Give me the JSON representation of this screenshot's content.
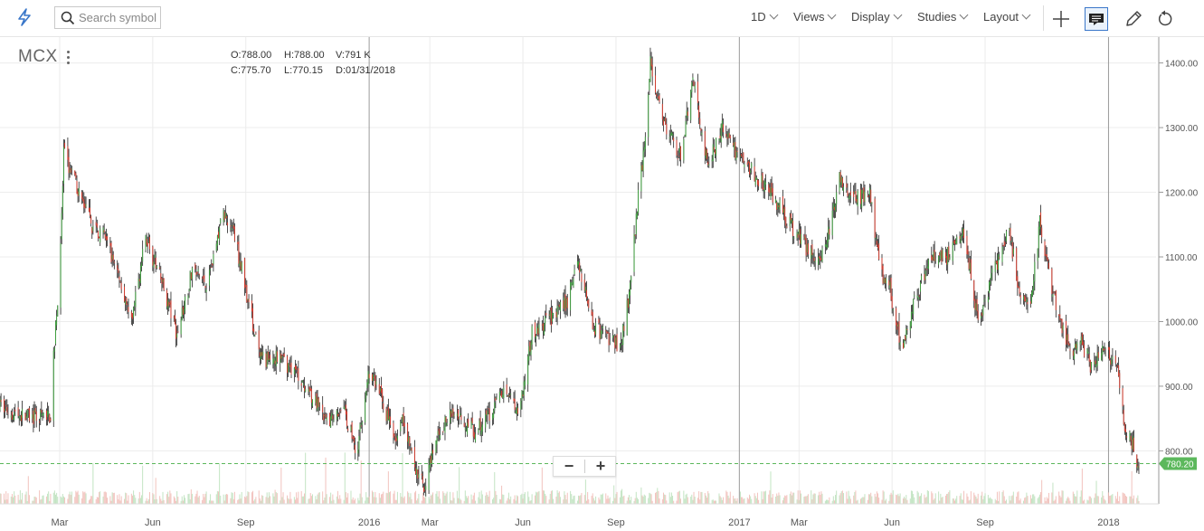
{
  "toolbar": {
    "search_placeholder": "Search symbol",
    "interval": "1D",
    "views": "Views",
    "display": "Display",
    "studies": "Studies",
    "layout": "Layout"
  },
  "header": {
    "symbol": "MCX",
    "open_label": "O:",
    "open": "788.00",
    "high_label": "H:",
    "high": "788.00",
    "volume_label": "V:",
    "volume": "791 K",
    "close_label": "C:",
    "close": "775.70",
    "low_label": "L:",
    "low": "770.15",
    "date_label": "D:",
    "date": "01/31/2018"
  },
  "colors": {
    "up": "#3f9e3f",
    "down": "#d23c2f",
    "last_price": "#5cb85c",
    "grid": "#ececec",
    "year_line": "#9a9a9a"
  },
  "chart_data": {
    "type": "candlestick",
    "symbol": "MCX",
    "interval": "1D",
    "last_price": 780.2,
    "last_price_label": "780.20",
    "yticks": [
      800,
      900,
      1000,
      1100,
      1200,
      1300,
      1400
    ],
    "ytick_labels": [
      "800.00",
      "900.00",
      "1000.00",
      "1100.00",
      "1200.00",
      "1300.00",
      "1400.00"
    ],
    "ylim": [
      718,
      1440
    ],
    "xlim": [
      "2015-01-01",
      "2018-02-17"
    ],
    "xticks": [
      {
        "date": "2015-03-01",
        "label": "Mar"
      },
      {
        "date": "2015-06-01",
        "label": "Jun"
      },
      {
        "date": "2015-09-01",
        "label": "Sep"
      },
      {
        "date": "2016-01-01",
        "label": "2016"
      },
      {
        "date": "2016-03-01",
        "label": "Mar"
      },
      {
        "date": "2016-06-01",
        "label": "Jun"
      },
      {
        "date": "2016-09-01",
        "label": "Sep"
      },
      {
        "date": "2017-01-01",
        "label": "2017"
      },
      {
        "date": "2017-03-01",
        "label": "Mar"
      },
      {
        "date": "2017-06-01",
        "label": "Jun"
      },
      {
        "date": "2017-09-01",
        "label": "Sep"
      },
      {
        "date": "2018-01-01",
        "label": "2018"
      }
    ],
    "approx_close_path": [
      [
        "2015-01-01",
        870
      ],
      [
        "2015-01-15",
        858
      ],
      [
        "2015-02-05",
        850
      ],
      [
        "2015-02-20",
        855
      ],
      [
        "2015-02-25",
        1000
      ],
      [
        "2015-03-01",
        1060
      ],
      [
        "2015-03-05",
        1260
      ],
      [
        "2015-03-15",
        1220
      ],
      [
        "2015-04-01",
        1150
      ],
      [
        "2015-04-15",
        1130
      ],
      [
        "2015-05-01",
        1060
      ],
      [
        "2015-05-10",
        990
      ],
      [
        "2015-05-25",
        1130
      ],
      [
        "2015-06-10",
        1060
      ],
      [
        "2015-06-25",
        980
      ],
      [
        "2015-07-10",
        1080
      ],
      [
        "2015-07-25",
        1060
      ],
      [
        "2015-08-10",
        1170
      ],
      [
        "2015-08-20",
        1140
      ],
      [
        "2015-08-28",
        1080
      ],
      [
        "2015-09-05",
        1020
      ],
      [
        "2015-09-15",
        940
      ],
      [
        "2015-10-01",
        945
      ],
      [
        "2015-10-15",
        930
      ],
      [
        "2015-11-01",
        900
      ],
      [
        "2015-11-20",
        840
      ],
      [
        "2015-12-05",
        870
      ],
      [
        "2015-12-20",
        800
      ],
      [
        "2015-12-31",
        920
      ],
      [
        "2016-01-10",
        900
      ],
      [
        "2016-01-25",
        820
      ],
      [
        "2016-02-05",
        850
      ],
      [
        "2016-02-15",
        770
      ],
      [
        "2016-02-25",
        745
      ],
      [
        "2016-03-10",
        830
      ],
      [
        "2016-03-25",
        860
      ],
      [
        "2016-04-15",
        830
      ],
      [
        "2016-05-01",
        860
      ],
      [
        "2016-05-15",
        900
      ],
      [
        "2016-05-28",
        860
      ],
      [
        "2016-06-10",
        980
      ],
      [
        "2016-06-25",
        1000
      ],
      [
        "2016-07-15",
        1030
      ],
      [
        "2016-07-25",
        1100
      ],
      [
        "2016-08-10",
        990
      ],
      [
        "2016-08-25",
        975
      ],
      [
        "2016-09-05",
        960
      ],
      [
        "2016-09-15",
        1050
      ],
      [
        "2016-09-22",
        1180
      ],
      [
        "2016-10-01",
        1300
      ],
      [
        "2016-10-05",
        1400
      ],
      [
        "2016-10-20",
        1300
      ],
      [
        "2016-11-05",
        1250
      ],
      [
        "2016-11-15",
        1380
      ],
      [
        "2016-12-01",
        1240
      ],
      [
        "2016-12-15",
        1300
      ],
      [
        "2016-12-25",
        1270
      ],
      [
        "2017-01-15",
        1230
      ],
      [
        "2017-02-01",
        1200
      ],
      [
        "2017-02-20",
        1150
      ],
      [
        "2017-03-10",
        1110
      ],
      [
        "2017-03-25",
        1100
      ],
      [
        "2017-04-10",
        1220
      ],
      [
        "2017-04-25",
        1190
      ],
      [
        "2017-05-10",
        1200
      ],
      [
        "2017-05-20",
        1080
      ],
      [
        "2017-05-30",
        1050
      ],
      [
        "2017-06-10",
        960
      ],
      [
        "2017-06-25",
        1040
      ],
      [
        "2017-07-10",
        1100
      ],
      [
        "2017-07-25",
        1100
      ],
      [
        "2017-08-10",
        1150
      ],
      [
        "2017-08-25",
        1000
      ],
      [
        "2017-09-10",
        1080
      ],
      [
        "2017-09-25",
        1140
      ],
      [
        "2017-10-05",
        1040
      ],
      [
        "2017-10-15",
        1020
      ],
      [
        "2017-10-25",
        1150
      ],
      [
        "2017-11-05",
        1060
      ],
      [
        "2017-11-15",
        1000
      ],
      [
        "2017-11-25",
        950
      ],
      [
        "2017-12-05",
        970
      ],
      [
        "2017-12-15",
        930
      ],
      [
        "2017-12-25",
        960
      ],
      [
        "2018-01-05",
        940
      ],
      [
        "2018-01-10",
        920
      ],
      [
        "2018-01-18",
        830
      ],
      [
        "2018-01-25",
        810
      ],
      [
        "2018-01-31",
        775.7
      ]
    ]
  }
}
